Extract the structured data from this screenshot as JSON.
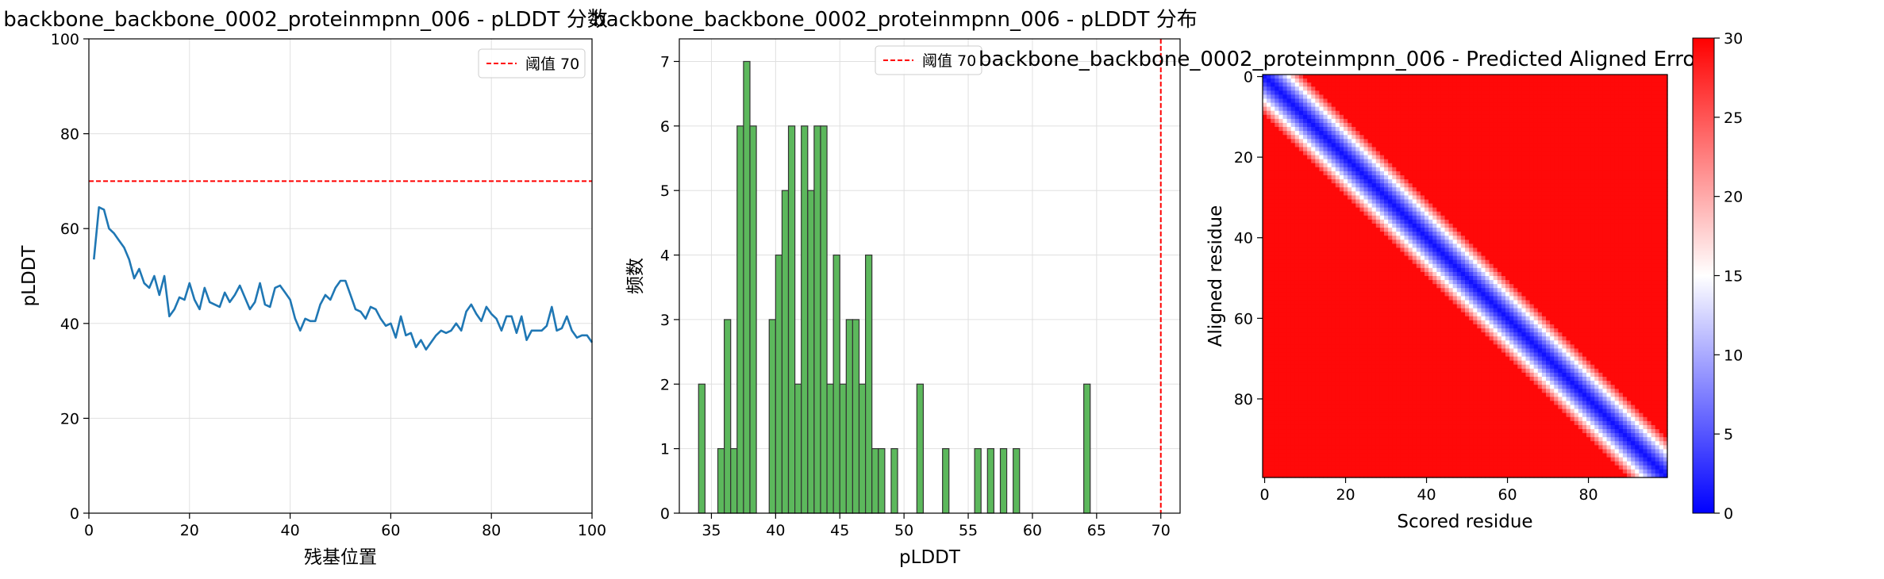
{
  "chart_data": [
    {
      "type": "line",
      "title": "backbone_backbone_0002_proteinmpnn_006 - pLDDT 分数",
      "xlabel": "残基位置",
      "ylabel": "pLDDT",
      "xlim": [
        0,
        100
      ],
      "ylim": [
        0,
        100
      ],
      "xticks": [
        "0",
        "20",
        "40",
        "60",
        "80",
        "100"
      ],
      "yticks": [
        "0",
        "20",
        "40",
        "60",
        "80",
        "100"
      ],
      "grid": true,
      "legend_position": "top-right",
      "threshold": {
        "value": 70,
        "label": "阈值 70",
        "color": "#ff0000"
      },
      "series": [
        {
          "color": "#1f77b4",
          "x": [
            1,
            2,
            3,
            4,
            5,
            6,
            7,
            8,
            9,
            10,
            11,
            12,
            13,
            14,
            15,
            16,
            17,
            18,
            19,
            20,
            21,
            22,
            23,
            24,
            25,
            26,
            27,
            28,
            29,
            30,
            31,
            32,
            33,
            34,
            35,
            36,
            37,
            38,
            39,
            40,
            41,
            42,
            43,
            44,
            45,
            46,
            47,
            48,
            49,
            50,
            51,
            52,
            53,
            54,
            55,
            56,
            57,
            58,
            59,
            60,
            61,
            62,
            63,
            64,
            65,
            66,
            67,
            68,
            69,
            70,
            71,
            72,
            73,
            74,
            75,
            76,
            77,
            78,
            79,
            80,
            81,
            82,
            83,
            84,
            85,
            86,
            87,
            88,
            89,
            90,
            91,
            92,
            93,
            94,
            95,
            96,
            97,
            98,
            99,
            100
          ],
          "y": [
            53.5,
            64.5,
            64,
            60,
            59,
            57.5,
            56,
            53.5,
            49.5,
            51.5,
            48.5,
            47.5,
            50,
            46,
            50,
            41.5,
            43,
            45.5,
            45,
            48.5,
            45,
            43,
            47.5,
            44.5,
            44,
            43.5,
            46.5,
            44.5,
            46,
            48,
            45.5,
            43,
            44.5,
            48.5,
            44,
            43.5,
            47.5,
            48,
            46.5,
            45,
            41,
            38.5,
            41,
            40.5,
            40.5,
            44,
            46,
            45,
            47.5,
            49,
            49,
            46,
            43,
            42.5,
            41,
            43.5,
            43,
            41,
            39.5,
            40,
            37,
            41.5,
            37.5,
            38,
            35,
            36.5,
            34.5,
            36,
            37.5,
            38.5,
            38,
            38.5,
            40,
            38.5,
            42.5,
            44,
            42,
            40.5,
            43.5,
            42,
            41,
            38.5,
            41.5,
            41.5,
            38,
            41.5,
            36.5,
            38.5,
            38.5,
            38.5,
            39.5,
            43.5,
            38.5,
            39,
            41.5,
            38.5,
            37,
            37.5,
            37.5,
            36
          ]
        }
      ]
    },
    {
      "type": "bar",
      "title": "backbone_backbone_0002_proteinmpnn_006 - pLDDT 分布",
      "xlabel": "pLDDT",
      "ylabel": "频数",
      "xlim": [
        32.5,
        71.5
      ],
      "ylim": [
        0,
        7.35
      ],
      "xticks": [
        "35",
        "40",
        "45",
        "50",
        "55",
        "60",
        "65",
        "70"
      ],
      "yticks": [
        "0",
        "1",
        "2",
        "3",
        "4",
        "5",
        "6",
        "7"
      ],
      "grid": true,
      "legend_position": "top-center",
      "bin_width": 0.5,
      "color": "#5cb85c",
      "threshold": {
        "value": 70,
        "label": "阈值 70",
        "color": "#ff0000"
      },
      "bins": [
        {
          "x": 34.0,
          "count": 2
        },
        {
          "x": 35.5,
          "count": 1
        },
        {
          "x": 36.0,
          "count": 3
        },
        {
          "x": 36.5,
          "count": 1
        },
        {
          "x": 37.0,
          "count": 6
        },
        {
          "x": 37.5,
          "count": 7
        },
        {
          "x": 38.0,
          "count": 6
        },
        {
          "x": 39.5,
          "count": 3
        },
        {
          "x": 40.0,
          "count": 4
        },
        {
          "x": 40.5,
          "count": 5
        },
        {
          "x": 41.0,
          "count": 6
        },
        {
          "x": 41.5,
          "count": 2
        },
        {
          "x": 42.0,
          "count": 6
        },
        {
          "x": 42.5,
          "count": 5
        },
        {
          "x": 43.0,
          "count": 6
        },
        {
          "x": 43.5,
          "count": 6
        },
        {
          "x": 44.0,
          "count": 2
        },
        {
          "x": 44.5,
          "count": 4
        },
        {
          "x": 45.0,
          "count": 2
        },
        {
          "x": 45.5,
          "count": 3
        },
        {
          "x": 46.0,
          "count": 3
        },
        {
          "x": 46.5,
          "count": 2
        },
        {
          "x": 47.0,
          "count": 4
        },
        {
          "x": 47.5,
          "count": 1
        },
        {
          "x": 48.0,
          "count": 1
        },
        {
          "x": 49.0,
          "count": 1
        },
        {
          "x": 51.0,
          "count": 2
        },
        {
          "x": 53.0,
          "count": 1
        },
        {
          "x": 55.5,
          "count": 1
        },
        {
          "x": 56.5,
          "count": 1
        },
        {
          "x": 57.5,
          "count": 1
        },
        {
          "x": 58.5,
          "count": 1
        },
        {
          "x": 64.0,
          "count": 2
        }
      ]
    },
    {
      "type": "heatmap",
      "title": "backbone_backbone_0002_proteinmpnn_006 - Predicted Aligned Error",
      "xlabel": "Scored residue",
      "ylabel": "Aligned residue",
      "size": 100,
      "xticks": [
        "0",
        "20",
        "40",
        "60",
        "80"
      ],
      "yticks": [
        "0",
        "20",
        "40",
        "60",
        "80"
      ],
      "colormap": "bwr",
      "colorbar": {
        "min": 0,
        "max": 30,
        "ticks": [
          "0",
          "5",
          "10",
          "15",
          "20",
          "25",
          "30"
        ]
      },
      "off_diagonal_value": 29.5,
      "diagonal_band": {
        "center_value": 1,
        "half_width_residues": 10
      }
    }
  ]
}
